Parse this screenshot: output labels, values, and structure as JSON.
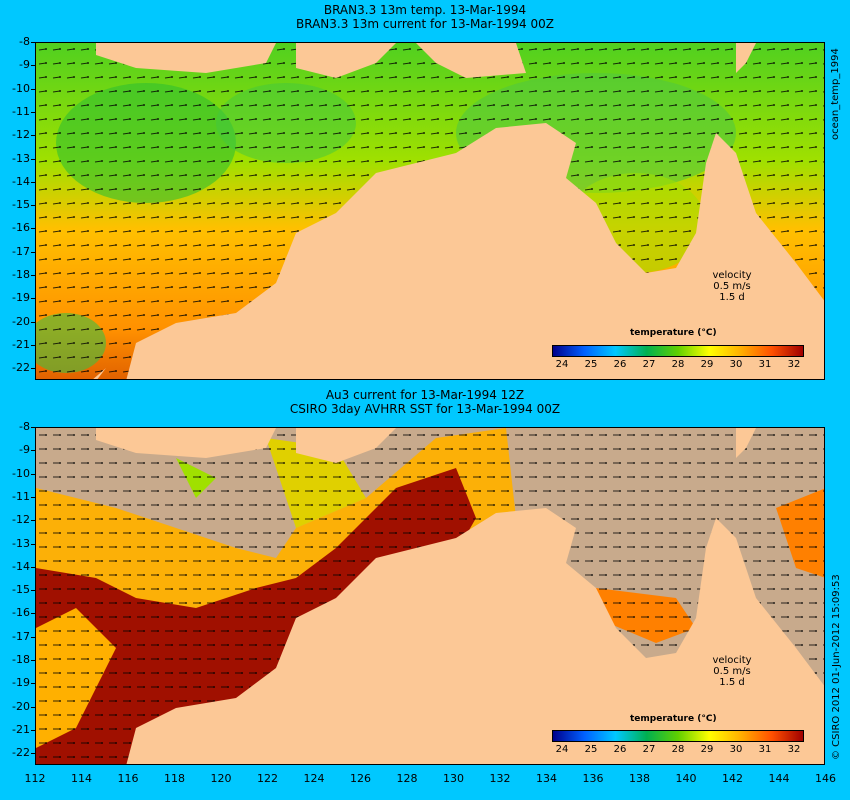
{
  "top": {
    "title1": "BRAN3.3 13m temp. 13-Mar-1994",
    "title2": "BRAN3.3 13m current for 13-Mar-1994 00Z",
    "side_label": "ocean_temp_1994"
  },
  "bottom": {
    "title1": "Au3 current for 13-Mar-1994 12Z",
    "title2": "CSIRO 3day AVHRR SST for 13-Mar-1994 00Z",
    "side_label": "© CSIRO 2012   01-Jun-2012 15:09:53"
  },
  "colorbar": {
    "title": "temperature (°C)",
    "labels": [
      "24",
      "25",
      "26",
      "27",
      "28",
      "29",
      "30",
      "31",
      "32"
    ],
    "colors": [
      "#00008b",
      "#0060ff",
      "#00c8ff",
      "#00b050",
      "#60d000",
      "#ffff00",
      "#ffb000",
      "#ff5000",
      "#a00000"
    ]
  },
  "velocity": {
    "label": "velocity",
    "speed": "0.5 m/s",
    "period": "1.5 d"
  },
  "axes": {
    "lat_labels": [
      "-8",
      "-9",
      "-10",
      "-11",
      "-12",
      "-13",
      "-14",
      "-15",
      "-16",
      "-17",
      "-18",
      "-19",
      "-20",
      "-21",
      "-22"
    ],
    "lon_labels": [
      "112",
      "114",
      "116",
      "118",
      "120",
      "122",
      "124",
      "126",
      "128",
      "130",
      "132",
      "134",
      "136",
      "138",
      "140",
      "142",
      "144",
      "146"
    ]
  },
  "colors": {
    "land": "#fcc896",
    "no_data": "#c8aa8c",
    "background": "#00c8ff"
  }
}
